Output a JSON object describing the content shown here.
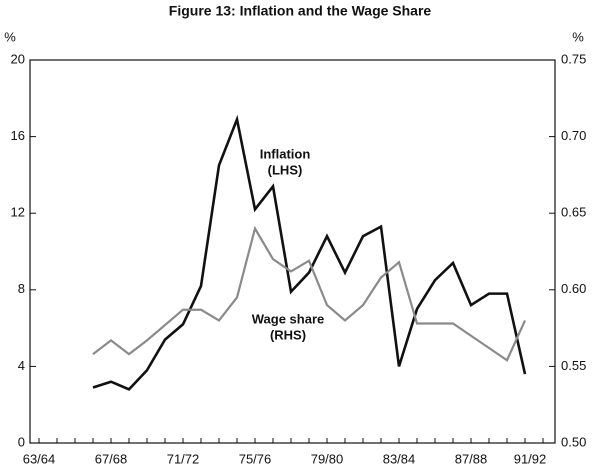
{
  "chart_data": {
    "type": "line",
    "title": "Figure 13: Inflation and the Wage Share",
    "y_label": "%",
    "y2_label": "%",
    "categories": [
      "63/64",
      null,
      null,
      null,
      "67/68",
      null,
      null,
      null,
      "71/72",
      null,
      null,
      null,
      "75/76",
      null,
      null,
      null,
      "79/80",
      null,
      null,
      null,
      "83/84",
      null,
      null,
      null,
      "87/88",
      null,
      null,
      null,
      "91/92"
    ],
    "ylim": [
      0,
      20
    ],
    "yticks": [
      0,
      4,
      8,
      12,
      16,
      20
    ],
    "y2lim": [
      0.5,
      0.75
    ],
    "y2ticks": [
      {
        "value": 0.5,
        "label": "0.50"
      },
      {
        "value": 0.55,
        "label": "0.55"
      },
      {
        "value": 0.6,
        "label": "0.60"
      },
      {
        "value": 0.65,
        "label": "0.65"
      },
      {
        "value": 0.7,
        "label": "0.70"
      },
      {
        "value": 0.75,
        "label": "0.75"
      }
    ],
    "series": [
      {
        "name": "Inflation",
        "side": "(LHS)",
        "color": "#111111",
        "values": [
          null,
          null,
          null,
          2.9,
          3.2,
          2.8,
          3.8,
          5.4,
          6.2,
          8.2,
          14.5,
          16.9,
          12.2,
          13.4,
          7.9,
          8.9,
          10.8,
          8.9,
          10.8,
          11.3,
          4.0,
          7.0,
          8.5,
          9.4,
          7.2,
          7.8,
          7.8,
          3.6,
          null
        ]
      },
      {
        "name": "Wage share",
        "side": "(RHS)",
        "color": "#8a8a8a",
        "axis": "y2",
        "values": [
          null,
          null,
          null,
          0.558,
          0.567,
          0.558,
          0.567,
          0.577,
          0.587,
          0.587,
          0.58,
          0.595,
          0.64,
          0.62,
          0.612,
          0.619,
          0.59,
          0.58,
          0.59,
          0.608,
          0.618,
          0.578,
          0.578,
          0.578,
          0.57,
          0.562,
          0.554,
          0.58,
          null
        ]
      }
    ]
  }
}
